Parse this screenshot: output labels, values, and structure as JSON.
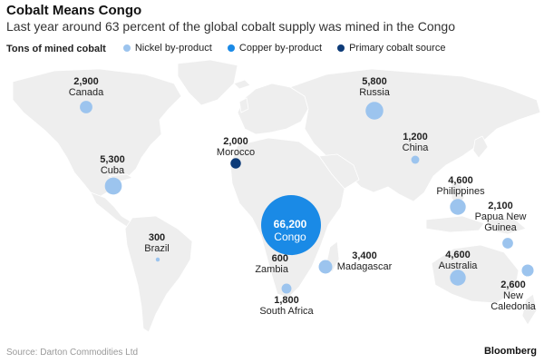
{
  "header": {
    "title": "Cobalt Means Congo",
    "subtitle": "Last year around 63 percent of the global cobalt supply was mined in the Congo"
  },
  "legend": {
    "title": "Tons of mined cobalt",
    "items": [
      {
        "label": "Nickel by-product",
        "color": "#9cc4ee"
      },
      {
        "label": "Copper by-product",
        "color": "#1a8ae6"
      },
      {
        "label": "Primary cobalt source",
        "color": "#0d3b78"
      }
    ]
  },
  "colors": {
    "land": "#eeeeee",
    "nickel": "#9cc4ee",
    "copper": "#1a8ae6",
    "primary": "#0d3b78"
  },
  "countries": [
    {
      "name": "Canada",
      "value_label": "2,900",
      "value": 2900,
      "type": "nickel"
    },
    {
      "name": "Russia",
      "value_label": "5,800",
      "value": 5800,
      "type": "nickel"
    },
    {
      "name": "Morocco",
      "value_label": "2,000",
      "value": 2000,
      "type": "primary"
    },
    {
      "name": "China",
      "value_label": "1,200",
      "value": 1200,
      "type": "nickel"
    },
    {
      "name": "Cuba",
      "value_label": "5,300",
      "value": 5300,
      "type": "nickel"
    },
    {
      "name": "Philippines",
      "value_label": "4,600",
      "value": 4600,
      "type": "nickel"
    },
    {
      "name": "Papua New Guinea",
      "value_label": "2,100",
      "value": 2100,
      "type": "nickel"
    },
    {
      "name": "Congo",
      "value_label": "66,200",
      "value": 66200,
      "type": "copper"
    },
    {
      "name": "Brazil",
      "value_label": "300",
      "value": 300,
      "type": "nickel"
    },
    {
      "name": "Zambia",
      "value_label": "600",
      "value": 600,
      "type": "copper"
    },
    {
      "name": "Madagascar",
      "value_label": "3,400",
      "value": 3400,
      "type": "nickel"
    },
    {
      "name": "Australia",
      "value_label": "4,600",
      "value": 4600,
      "type": "nickel"
    },
    {
      "name": "South Africa",
      "value_label": "1,800",
      "value": 1800,
      "type": "nickel"
    },
    {
      "name": "New Caledonia",
      "value_label": "2,600",
      "value": 2600,
      "type": "nickel"
    }
  ],
  "footer": {
    "source": "Source: Darton Commodities Ltd",
    "brand": "Bloomberg"
  }
}
